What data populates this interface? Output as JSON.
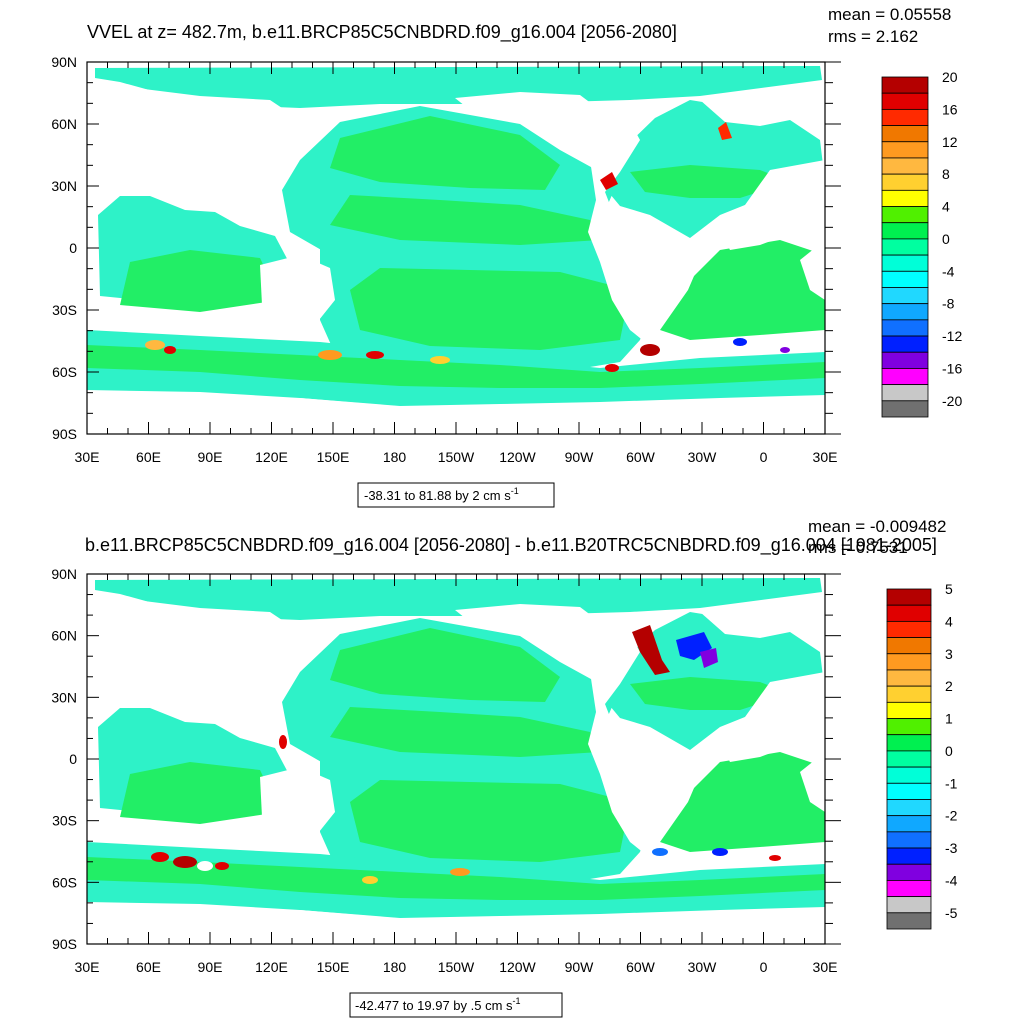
{
  "chart_data": [
    {
      "type": "heatmap",
      "title": "VVEL at z= 482.7m, b.e11.BRCP85C5CNBDRD.f09_g16.004 [2056-2080]",
      "stats": {
        "mean": "mean = 0.05558",
        "rms": "rms = 2.162"
      },
      "x_ticks": [
        "30E",
        "60E",
        "90E",
        "120E",
        "150E",
        "180",
        "150W",
        "120W",
        "90W",
        "60W",
        "30W",
        "0",
        "30E"
      ],
      "y_ticks": [
        "90N",
        "60N",
        "30N",
        "0",
        "30S",
        "60S",
        "90S"
      ],
      "xlim": [
        30,
        390
      ],
      "ylim": [
        -90,
        90
      ],
      "colorbar_labels": [
        "20",
        "16",
        "12",
        "8",
        "4",
        "0",
        "-4",
        "-8",
        "-12",
        "-16",
        "-20"
      ],
      "range_label": "-38.31 to 81.88 by 2 cm s",
      "range_exp": "-1",
      "grid": false
    },
    {
      "type": "heatmap",
      "title": "b.e11.BRCP85C5CNBDRD.f09_g16.004 [2056-2080] - b.e11.B20TRC5CNBDRD.f09_g16.004 [1981-2005]",
      "stats": {
        "mean": "mean = -0.009482",
        "rms": "rms = 0.7531"
      },
      "x_ticks": [
        "30E",
        "60E",
        "90E",
        "120E",
        "150E",
        "180",
        "150W",
        "120W",
        "90W",
        "60W",
        "30W",
        "0",
        "30E"
      ],
      "y_ticks": [
        "90N",
        "60N",
        "30N",
        "0",
        "30S",
        "60S",
        "90S"
      ],
      "xlim": [
        30,
        390
      ],
      "ylim": [
        -90,
        90
      ],
      "colorbar_labels": [
        "5",
        "4",
        "3",
        "2",
        "1",
        "0",
        "-1",
        "-2",
        "-3",
        "-4",
        "-5"
      ],
      "range_label": "-42.477 to 19.97 by .5 cm s",
      "range_exp": "-1",
      "grid": false
    }
  ],
  "colors": {
    "colorbar": [
      "#b40000",
      "#e00000",
      "#ff2a00",
      "#f07800",
      "#ff9a20",
      "#ffb840",
      "#ffd030",
      "#ffff00",
      "#50f000",
      "#00f050",
      "#00ffa0",
      "#00ffd8",
      "#00ffff",
      "#20d8ff",
      "#10a8ff",
      "#1070ff",
      "#0020ff",
      "#8000e0",
      "#ff00ff",
      "#c8c8c8",
      "#707070"
    ],
    "ocean_main": "#22ee66",
    "ocean_shelf": "#2ef2c8",
    "land": "#ffffff"
  }
}
